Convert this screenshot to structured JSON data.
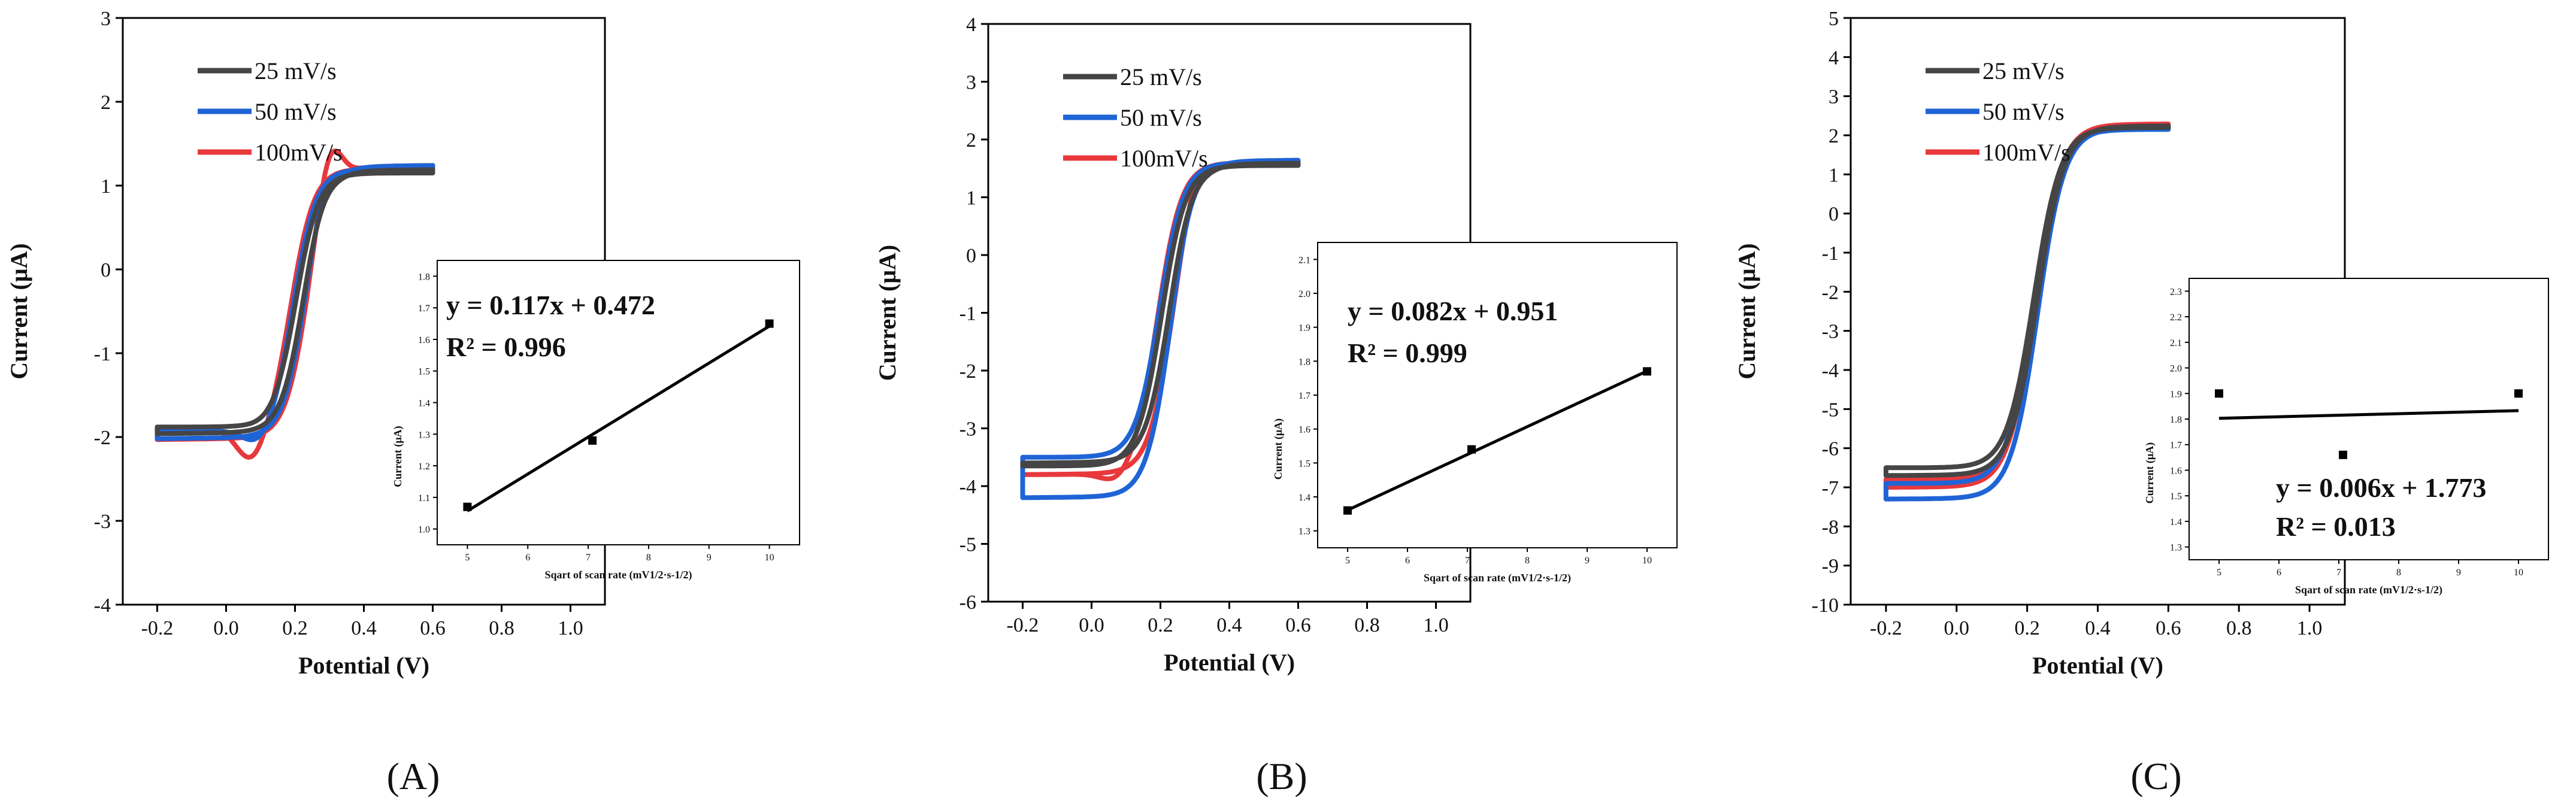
{
  "figure": {
    "panel_labels": [
      "(A)",
      "(B)",
      "(C)"
    ],
    "colors": {
      "s25": "#454545",
      "s50": "#1f64d6",
      "s100": "#e8383c"
    }
  },
  "chart_data": [
    {
      "type": "line",
      "panel": "A",
      "xlabel": "Potential (V)",
      "ylabel": "Current (μA)",
      "xlim": [
        -0.3,
        1.1
      ],
      "ylim": [
        -4,
        3
      ],
      "xticks": [
        -0.2,
        0.0,
        0.2,
        0.4,
        0.6,
        0.8,
        1.0
      ],
      "xticklabels": [
        "-0.2",
        "0.0",
        "0.2",
        "0.4",
        "0.6",
        "0.8",
        "1.0"
      ],
      "yticks": [
        -4,
        -3,
        -2,
        -1,
        0,
        1,
        2,
        3
      ],
      "grid": false,
      "legend_position": "top-left",
      "cv": {
        "xmin": -0.2,
        "xmax": 0.6,
        "e0": 0.215,
        "fwd_limit": [
          1.15,
          1.2,
          1.2
        ],
        "fwd_start": [
          -1.96,
          -2.02,
          -2.03
        ],
        "rev_limit": [
          -1.88,
          -1.93,
          -1.9
        ],
        "ox_peak": [
          0.05,
          0.15,
          0.5
        ],
        "red_peak": [
          -0.02,
          -0.2,
          -0.42
        ],
        "width": 0.033,
        "ox_shift": [
          0.03,
          0.045,
          0.065
        ],
        "red_shift": [
          0.04,
          0.06,
          0.08
        ]
      },
      "series": [
        {
          "name": "25  mV/s"
        },
        {
          "name": "50  mV/s"
        },
        {
          "name": "100mV/s"
        }
      ],
      "inset": {
        "type": "scatter",
        "xlabel": "Sqart of scan rate (mV1/2·s-1/2)",
        "ylabel": "Current (μA)",
        "xlim": [
          4.5,
          10.5
        ],
        "ylim": [
          0.95,
          1.85
        ],
        "xticks": [
          5,
          6,
          7,
          8,
          9,
          10
        ],
        "yticks": [
          1.0,
          1.1,
          1.2,
          1.3,
          1.4,
          1.5,
          1.6,
          1.7,
          1.8
        ],
        "yticklabels": [
          "1.0",
          "1.1",
          "1.2",
          "1.3",
          "1.4",
          "1.5",
          "1.6",
          "1.7",
          "1.8"
        ],
        "x": [
          5,
          7.07,
          10
        ],
        "y": [
          1.07,
          1.28,
          1.65
        ],
        "fit": {
          "slope": 0.117,
          "intercept": 0.472
        },
        "equation": "y   = 0.117x + 0.472",
        "r2": "R² = 0.996"
      }
    },
    {
      "type": "line",
      "panel": "B",
      "xlabel": "Potential (V)",
      "ylabel": "Current (μA)",
      "xlim": [
        -0.3,
        1.1
      ],
      "ylim": [
        -6,
        4
      ],
      "xticks": [
        -0.2,
        0.0,
        0.2,
        0.4,
        0.6,
        0.8,
        1.0
      ],
      "xticklabels": [
        "-0.2",
        "0.0",
        "0.2",
        "0.4",
        "0.6",
        "0.8",
        "1.0"
      ],
      "yticks": [
        -6,
        -5,
        -4,
        -3,
        -2,
        -1,
        0,
        1,
        2,
        3,
        4
      ],
      "grid": false,
      "legend_position": "top-left",
      "cv": {
        "xmin": -0.2,
        "xmax": 0.6,
        "e0": 0.215,
        "fwd_limit": [
          1.55,
          1.6,
          1.6
        ],
        "fwd_start": [
          -3.6,
          -4.2,
          -3.8
        ],
        "rev_limit": [
          -3.65,
          -3.5,
          -3.8
        ],
        "ox_peak": [
          0.05,
          0.1,
          0.28
        ],
        "red_peak": [
          0.0,
          0.0,
          -0.2
        ],
        "width": 0.035,
        "ox_shift": [
          0.035,
          0.045,
          0.065
        ],
        "red_shift": [
          0.04,
          0.06,
          0.08
        ]
      },
      "series": [
        {
          "name": "25  mV/s"
        },
        {
          "name": "50  mV/s"
        },
        {
          "name": "100mV/s"
        }
      ],
      "inset": {
        "type": "scatter",
        "xlabel": "Sqart of scan rate (mV1/2·s-1/2)",
        "ylabel": "Current (μA)",
        "xlim": [
          4.5,
          10.5
        ],
        "ylim": [
          1.25,
          2.15
        ],
        "xticks": [
          5,
          6,
          7,
          8,
          9,
          10
        ],
        "yticks": [
          1.3,
          1.4,
          1.5,
          1.6,
          1.7,
          1.8,
          1.9,
          2.0,
          2.1
        ],
        "yticklabels": [
          "1.3",
          "1.4",
          "1.5",
          "1.6",
          "1.7",
          "1.8",
          "1.9",
          "2.0",
          "2.1"
        ],
        "x": [
          5,
          7.07,
          10
        ],
        "y": [
          1.36,
          1.54,
          1.77
        ],
        "fit": {
          "slope": 0.082,
          "intercept": 0.951
        },
        "equation": "y   = 0.082x + 0.951",
        "r2": "R² = 0.999"
      }
    },
    {
      "type": "line",
      "panel": "C",
      "xlabel": "Potential (V)",
      "ylabel": "Current (μA)",
      "xlim": [
        -0.3,
        1.1
      ],
      "ylim": [
        -10,
        5
      ],
      "xticks": [
        -0.2,
        0.0,
        0.2,
        0.4,
        0.6,
        0.8,
        1.0
      ],
      "xticklabels": [
        "-0.2",
        "0.0",
        "0.2",
        "0.4",
        "0.6",
        "0.8",
        "1.0"
      ],
      "yticks": [
        -10,
        -9,
        -8,
        -7,
        -6,
        -5,
        -4,
        -3,
        -2,
        -1,
        0,
        1,
        2,
        3,
        4,
        5
      ],
      "grid": false,
      "legend_position": "top-left",
      "cv": {
        "xmin": -0.2,
        "xmax": 0.6,
        "e0": 0.225,
        "fwd_limit": [
          2.2,
          2.15,
          2.25
        ],
        "fwd_start": [
          -6.7,
          -7.3,
          -7.0
        ],
        "rev_limit": [
          -6.5,
          -6.9,
          -6.8
        ],
        "ox_peak": [
          0.0,
          0.0,
          0.0
        ],
        "red_peak": [
          0.0,
          0.0,
          0.0
        ],
        "width": 0.038,
        "ox_shift": [
          0.01,
          0.015,
          -0.01
        ],
        "red_shift": [
          0.02,
          0.025,
          0.0
        ]
      },
      "series": [
        {
          "name": "25  mV/s"
        },
        {
          "name": "50  mV/s"
        },
        {
          "name": "100mV/s"
        }
      ],
      "inset": {
        "type": "scatter",
        "xlabel": "Sqart of scan rate (mV1/2·s-1/2)",
        "ylabel": "Current (μA)",
        "xlim": [
          4.5,
          10.5
        ],
        "ylim": [
          1.25,
          2.35
        ],
        "xticks": [
          5,
          6,
          7,
          8,
          9,
          10
        ],
        "yticks": [
          1.3,
          1.4,
          1.5,
          1.6,
          1.7,
          1.8,
          1.9,
          2.0,
          2.1,
          2.2,
          2.3
        ],
        "yticklabels": [
          "1.3",
          "1.4",
          "1.5",
          "1.6",
          "1.7",
          "1.8",
          "1.9",
          "2.0",
          "2.1",
          "2.2",
          "2.3"
        ],
        "x": [
          5,
          7.07,
          10
        ],
        "y": [
          1.9,
          1.66,
          1.9
        ],
        "fit": {
          "slope": 0.006,
          "intercept": 1.773
        },
        "equation": "y   = 0.006x + 1.773",
        "r2": "R² = 0.013"
      }
    }
  ]
}
